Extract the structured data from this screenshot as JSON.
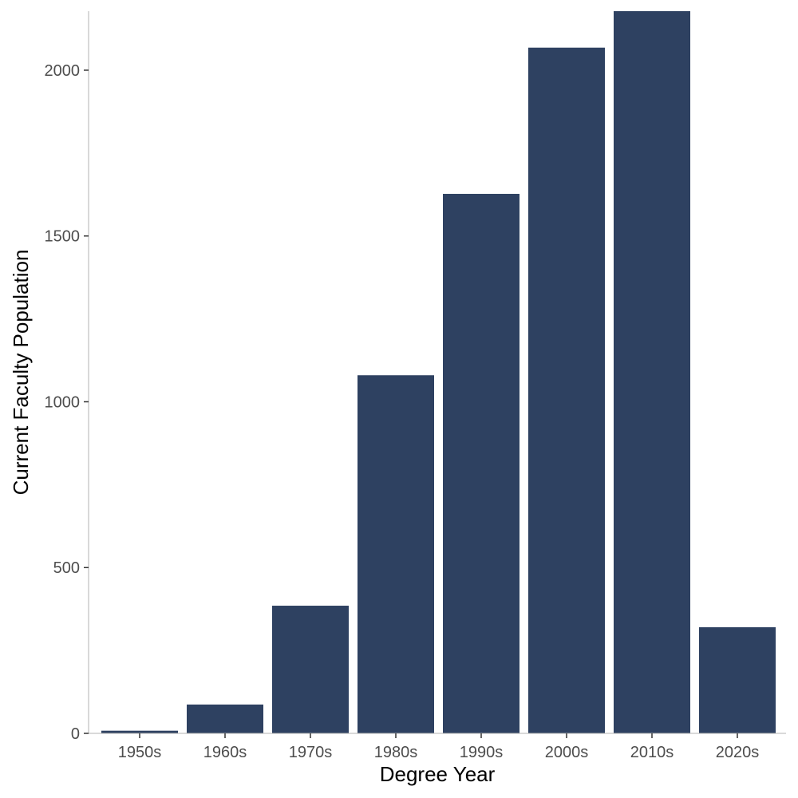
{
  "chart_data": {
    "type": "bar",
    "title": "",
    "xlabel": "Degree Year",
    "ylabel": "Current Faculty Population",
    "categories": [
      "1950s",
      "1960s",
      "1970s",
      "1980s",
      "1990s",
      "2000s",
      "2010s",
      "2020s"
    ],
    "values": [
      8,
      87,
      385,
      1080,
      1627,
      2068,
      2178,
      320
    ],
    "ylim": [
      0,
      2178
    ],
    "yticks": [
      0,
      500,
      1000,
      1500,
      2000
    ],
    "ytick_labels": [
      "0",
      "500",
      "1000",
      "1500",
      "2000"
    ],
    "bar_color": "#2e4161",
    "grid": false,
    "legend": "none"
  }
}
